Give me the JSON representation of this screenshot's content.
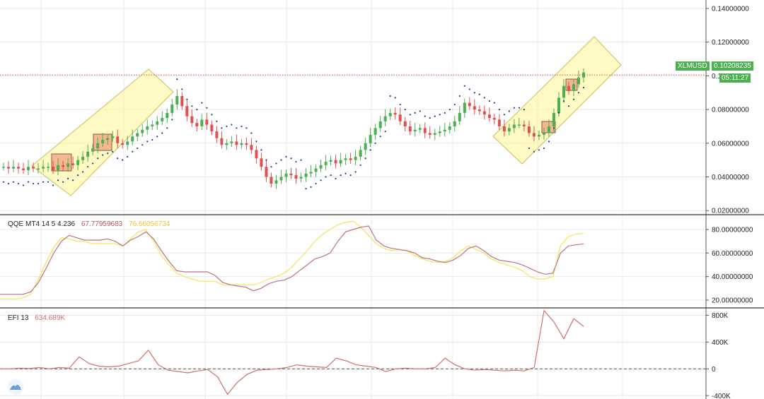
{
  "symbol": "XLMUSD",
  "last_price_label": "0.10208235",
  "countdown": "05:11:27",
  "colors": {
    "up": "#4caf50",
    "down": "#e05050",
    "sar": "#1e3a8a",
    "box": "#fff59d",
    "box_stroke": "#c8c25a",
    "sq_fill": "#f0a080",
    "price_line": "#e05050",
    "qqe_main": "#c07080",
    "qqe_signal": "#f7e25a",
    "efi": "#d07070",
    "grid": "#e8e8e8"
  },
  "price_axis": {
    "labels": [
      "0.14000000",
      "0.12000000",
      "0.10000000",
      "0.08000000",
      "0.06000000",
      "0.04000000",
      "0.02000000"
    ],
    "ticks": [
      0.14,
      0.12,
      0.1,
      0.08,
      0.06,
      0.04,
      0.02
    ]
  },
  "qqe": {
    "label": "QQE MT4 14 5 4.236",
    "value1": "67.77959683",
    "value2": "76.66056734",
    "axis_labels": [
      "80.00000000",
      "60.00000000",
      "40.00000000",
      "20.00000000"
    ],
    "ticks": [
      80,
      60,
      40,
      20
    ]
  },
  "efi": {
    "label": "EFI 13",
    "value": "634.689K",
    "axis_labels": [
      "800K",
      "400K",
      "0",
      "-400K"
    ],
    "ticks": [
      800,
      400,
      0,
      -400
    ]
  },
  "chart_data": [
    {
      "type": "candlestick",
      "title": "XLMUSD",
      "ylim": [
        0.018,
        0.145
      ],
      "close": [
        0.046,
        0.045,
        0.046,
        0.045,
        0.044,
        0.046,
        0.045,
        0.045,
        0.046,
        0.046,
        0.044,
        0.047,
        0.046,
        0.048,
        0.047,
        0.05,
        0.052,
        0.055,
        0.057,
        0.06,
        0.062,
        0.063,
        0.064,
        0.06,
        0.059,
        0.061,
        0.064,
        0.066,
        0.068,
        0.07,
        0.071,
        0.073,
        0.075,
        0.078,
        0.083,
        0.088,
        0.082,
        0.076,
        0.072,
        0.07,
        0.074,
        0.071,
        0.067,
        0.063,
        0.059,
        0.06,
        0.061,
        0.059,
        0.06,
        0.059,
        0.056,
        0.051,
        0.046,
        0.04,
        0.036,
        0.038,
        0.04,
        0.042,
        0.041,
        0.039,
        0.04,
        0.042,
        0.043,
        0.045,
        0.047,
        0.049,
        0.05,
        0.048,
        0.05,
        0.051,
        0.05,
        0.052,
        0.056,
        0.06,
        0.065,
        0.069,
        0.073,
        0.076,
        0.078,
        0.077,
        0.073,
        0.07,
        0.067,
        0.068,
        0.069,
        0.066,
        0.065,
        0.066,
        0.067,
        0.068,
        0.07,
        0.073,
        0.078,
        0.084,
        0.082,
        0.08,
        0.079,
        0.077,
        0.075,
        0.074,
        0.07,
        0.067,
        0.069,
        0.071,
        0.071,
        0.07,
        0.066,
        0.064,
        0.065,
        0.066,
        0.07,
        0.078,
        0.087,
        0.094,
        0.091,
        0.095,
        0.099,
        0.102
      ]
    },
    {
      "type": "line",
      "title": "QQE MT4 14 5 4.236",
      "ylim": [
        14,
        92
      ],
      "series": [
        {
          "name": "67.77959683",
          "values": [
            25,
            25,
            25,
            25,
            27,
            35,
            47,
            60,
            70,
            75,
            73,
            71,
            71,
            71,
            72,
            70,
            66,
            71,
            74,
            78,
            72,
            62,
            53,
            45,
            44,
            44,
            44,
            44,
            41,
            35,
            33,
            32,
            31,
            28,
            30,
            34,
            36,
            37,
            40,
            45,
            50,
            55,
            57,
            60,
            70,
            78,
            80,
            82,
            83,
            71,
            66,
            64,
            63,
            62,
            60,
            56,
            55,
            53,
            52,
            54,
            58,
            64,
            66,
            62,
            57,
            54,
            53,
            52,
            50,
            47,
            44,
            42,
            43,
            60,
            66,
            67,
            67.8
          ]
        },
        {
          "name": "76.66056734",
          "values": [
            21,
            21,
            21,
            22,
            25,
            38,
            52,
            65,
            73,
            72,
            70,
            70,
            68,
            68,
            68,
            68,
            66,
            72,
            78,
            80,
            70,
            58,
            50,
            43,
            40,
            38,
            36,
            36,
            36,
            33,
            33,
            33,
            33,
            33,
            35,
            38,
            40,
            43,
            48,
            55,
            62,
            70,
            76,
            80,
            84,
            86,
            87,
            82,
            75,
            68,
            64,
            62,
            63,
            62,
            58,
            55,
            53,
            52,
            53,
            56,
            62,
            66,
            63,
            60,
            55,
            52,
            50,
            48,
            45,
            40,
            38,
            38,
            40,
            66,
            74,
            76,
            76.7
          ]
        }
      ]
    },
    {
      "type": "line",
      "title": "EFI 13",
      "ylim": [
        -450,
        900
      ],
      "series": [
        {
          "name": "634.689K",
          "values": [
            0,
            0,
            10,
            5,
            20,
            0,
            20,
            10,
            180,
            80,
            40,
            30,
            40,
            80,
            120,
            280,
            60,
            -20,
            -40,
            -60,
            -30,
            -10,
            -120,
            -380,
            -200,
            -80,
            -20,
            -10,
            0,
            20,
            60,
            40,
            30,
            20,
            160,
            120,
            60,
            40,
            20,
            -40,
            0,
            10,
            0,
            0,
            20,
            160,
            60,
            0,
            -20,
            -10,
            -20,
            -30,
            -20,
            -30,
            20,
            870,
            700,
            450,
            750,
            634.689
          ]
        }
      ]
    }
  ]
}
